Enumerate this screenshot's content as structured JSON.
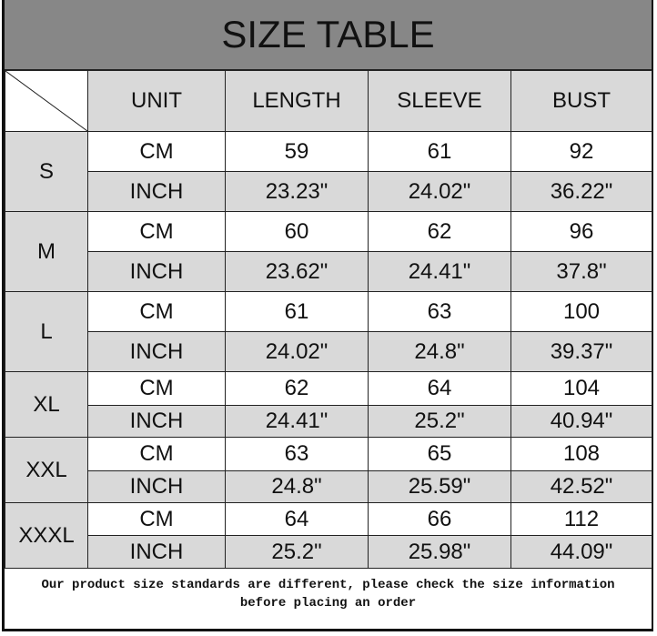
{
  "title": "SIZE TABLE",
  "headers": [
    "UNIT",
    "LENGTH",
    "SLEEVE",
    "BUST"
  ],
  "rows": [
    {
      "size": "S",
      "cm": {
        "unit": "CM",
        "length": "59",
        "sleeve": "61",
        "bust": "92"
      },
      "inch": {
        "unit": "INCH",
        "length": "23.23\"",
        "sleeve": "24.02\"",
        "bust": "36.22\""
      }
    },
    {
      "size": "M",
      "cm": {
        "unit": "CM",
        "length": "60",
        "sleeve": "62",
        "bust": "96"
      },
      "inch": {
        "unit": "INCH",
        "length": "23.62\"",
        "sleeve": "24.41\"",
        "bust": "37.8\""
      }
    },
    {
      "size": "L",
      "cm": {
        "unit": "CM",
        "length": "61",
        "sleeve": "63",
        "bust": "100"
      },
      "inch": {
        "unit": "INCH",
        "length": "24.02\"",
        "sleeve": "24.8\"",
        "bust": "39.37\""
      }
    },
    {
      "size": "XL",
      "cm": {
        "unit": "CM",
        "length": "62",
        "sleeve": "64",
        "bust": "104"
      },
      "inch": {
        "unit": "INCH",
        "length": "24.41\"",
        "sleeve": "25.2\"",
        "bust": "40.94\""
      }
    },
    {
      "size": "XXL",
      "cm": {
        "unit": "CM",
        "length": "63",
        "sleeve": "65",
        "bust": "108"
      },
      "inch": {
        "unit": "INCH",
        "length": "24.8\"",
        "sleeve": "25.59\"",
        "bust": "42.52\""
      }
    },
    {
      "size": "XXXL",
      "cm": {
        "unit": "CM",
        "length": "64",
        "sleeve": "66",
        "bust": "112"
      },
      "inch": {
        "unit": "INCH",
        "length": "25.2\"",
        "sleeve": "25.98\"",
        "bust": "44.09\""
      }
    }
  ],
  "note": {
    "line1": "Our product size standards are different, please check the size information",
    "line2": "before placing an order"
  }
}
